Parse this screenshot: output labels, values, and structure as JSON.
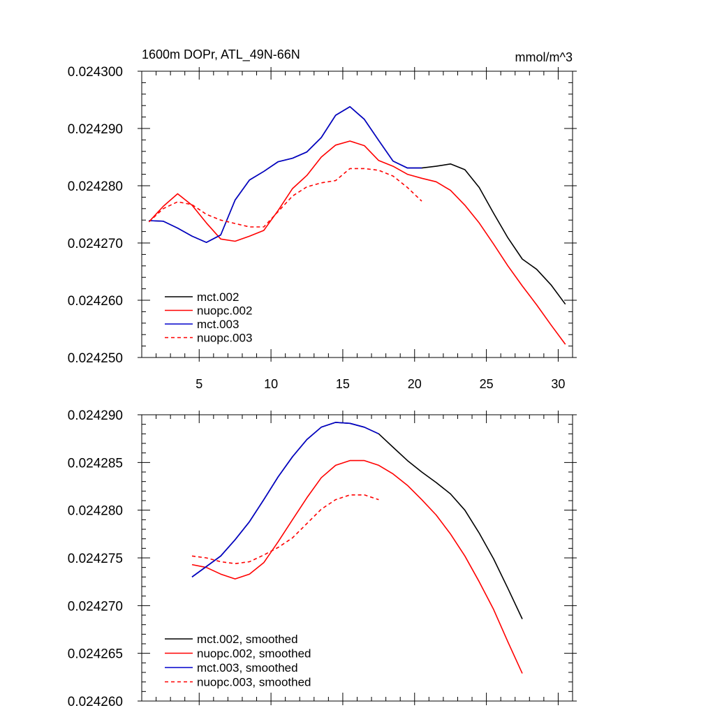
{
  "chart_data": [
    {
      "type": "line",
      "title": "1600m DOPr, ATL_49N-66N",
      "units": "mmol/m^3",
      "xlim": [
        1.0,
        31.0
      ],
      "ylim": [
        0.02425,
        0.0243
      ],
      "xticks": [
        5,
        10,
        15,
        20,
        25,
        30
      ],
      "xtick_labels": [
        "5",
        "10",
        "15",
        "20",
        "25",
        "30"
      ],
      "yticks": [
        0.02425,
        0.02426,
        0.02427,
        0.02428,
        0.02429,
        0.0243
      ],
      "ytick_labels": [
        "0.024250",
        "0.024260",
        "0.024270",
        "0.024280",
        "0.024290",
        "0.024300"
      ],
      "legend_position": "bottom-left",
      "series": [
        {
          "name": "mct.002",
          "color": "#000000",
          "dash": "solid",
          "x": [
            1.5,
            2.5,
            3.5,
            4.5,
            5.5,
            6.5,
            7.5,
            8.5,
            9.5,
            10.5,
            11.5,
            12.5,
            13.5,
            14.5,
            15.5,
            16.5,
            17.5,
            18.5,
            19.5,
            20.5,
            21.5,
            22.5,
            23.5,
            24.5,
            25.5,
            26.5,
            27.5,
            28.5,
            29.5,
            30.5
          ],
          "y": [
            0.0242739,
            0.0242738,
            0.0242726,
            0.0242712,
            0.0242701,
            0.0242714,
            0.0242775,
            0.024281,
            0.0242825,
            0.0242842,
            0.0242848,
            0.0242859,
            0.0242884,
            0.0242923,
            0.0242938,
            0.0242916,
            0.0242879,
            0.0242843,
            0.0242831,
            0.0242831,
            0.0242834,
            0.0242838,
            0.0242828,
            0.0242797,
            0.0242752,
            0.0242709,
            0.0242672,
            0.0242654,
            0.0242627,
            0.0242593
          ]
        },
        {
          "name": "nuopc.002",
          "color": "#ff0000",
          "dash": "solid",
          "x": [
            1.5,
            2.5,
            3.5,
            4.5,
            5.5,
            6.5,
            7.5,
            8.5,
            9.5,
            10.5,
            11.5,
            12.5,
            13.5,
            14.5,
            15.5,
            16.5,
            17.5,
            18.5,
            19.5,
            20.5,
            21.5,
            22.5,
            23.5,
            24.5,
            25.5,
            26.5,
            27.5,
            28.5,
            29.5,
            30.5
          ],
          "y": [
            0.0242737,
            0.0242764,
            0.0242786,
            0.0242766,
            0.0242735,
            0.0242707,
            0.0242703,
            0.0242712,
            0.0242722,
            0.0242757,
            0.0242795,
            0.0242818,
            0.024285,
            0.0242871,
            0.0242878,
            0.024287,
            0.0242844,
            0.0242834,
            0.024282,
            0.0242813,
            0.0242807,
            0.0242792,
            0.0242766,
            0.0242735,
            0.0242698,
            0.024266,
            0.0242625,
            0.0242592,
            0.0242557,
            0.0242523
          ]
        },
        {
          "name": "mct.003",
          "color": "#0000cc",
          "dash": "solid",
          "x": [
            1.5,
            2.5,
            3.5,
            4.5,
            5.5,
            6.5,
            7.5,
            8.5,
            9.5,
            10.5,
            11.5,
            12.5,
            13.5,
            14.5,
            15.5,
            16.5,
            17.5,
            18.5,
            19.5,
            20.5
          ],
          "y": [
            0.0242739,
            0.0242738,
            0.0242726,
            0.0242712,
            0.0242701,
            0.0242714,
            0.0242775,
            0.024281,
            0.0242825,
            0.0242842,
            0.0242848,
            0.0242859,
            0.0242884,
            0.0242923,
            0.0242938,
            0.0242916,
            0.0242879,
            0.0242843,
            0.0242831,
            0.0242831
          ]
        },
        {
          "name": "nuopc.003",
          "color": "#ff0000",
          "dash": "dashed",
          "x": [
            1.5,
            2.5,
            3.5,
            4.5,
            5.5,
            6.5,
            7.5,
            8.5,
            9.5,
            10.5,
            11.5,
            12.5,
            13.5,
            14.5,
            15.5,
            16.5,
            17.5,
            18.5,
            19.5,
            20.5
          ],
          "y": [
            0.0242737,
            0.024276,
            0.0242772,
            0.0242767,
            0.024275,
            0.024274,
            0.0242734,
            0.0242728,
            0.0242728,
            0.0242755,
            0.0242782,
            0.0242798,
            0.0242805,
            0.0242809,
            0.024283,
            0.024283,
            0.0242827,
            0.0242817,
            0.0242797,
            0.0242773
          ]
        }
      ]
    },
    {
      "type": "line",
      "xlim": [
        1.0,
        31.0
      ],
      "ylim": [
        0.02426,
        0.02429
      ],
      "xticks": [
        5,
        10,
        15,
        20,
        25,
        30
      ],
      "yticks": [
        0.02426,
        0.024265,
        0.02427,
        0.024275,
        0.02428,
        0.024285,
        0.02429
      ],
      "ytick_labels": [
        "0.024260",
        "0.024265",
        "0.024270",
        "0.024275",
        "0.024280",
        "0.024285",
        "0.024290"
      ],
      "legend_position": "bottom-left",
      "series": [
        {
          "name": "mct.002, smoothed",
          "color": "#000000",
          "dash": "solid",
          "x": [
            4.5,
            5.5,
            6.5,
            7.5,
            8.5,
            9.5,
            10.5,
            11.5,
            12.5,
            13.5,
            14.5,
            15.5,
            16.5,
            17.5,
            18.5,
            19.5,
            20.5,
            21.5,
            22.5,
            23.5,
            24.5,
            25.5,
            26.5,
            27.5
          ],
          "y": [
            0.024273,
            0.0242741,
            0.0242752,
            0.0242769,
            0.0242788,
            0.0242811,
            0.0242835,
            0.0242856,
            0.0242874,
            0.0242887,
            0.0242892,
            0.0242891,
            0.0242887,
            0.024288,
            0.0242866,
            0.0242852,
            0.024284,
            0.0242829,
            0.0242817,
            0.02428,
            0.0242776,
            0.0242749,
            0.0242718,
            0.0242686
          ]
        },
        {
          "name": "nuopc.002, smoothed",
          "color": "#ff0000",
          "dash": "solid",
          "x": [
            4.5,
            5.5,
            6.5,
            7.5,
            8.5,
            9.5,
            10.5,
            11.5,
            12.5,
            13.5,
            14.5,
            15.5,
            16.5,
            17.5,
            18.5,
            19.5,
            20.5,
            21.5,
            22.5,
            23.5,
            24.5,
            25.5,
            26.5,
            27.5
          ],
          "y": [
            0.0242743,
            0.024274,
            0.0242733,
            0.0242728,
            0.0242733,
            0.0242745,
            0.0242767,
            0.024279,
            0.0242813,
            0.0242834,
            0.0242847,
            0.0242852,
            0.0242852,
            0.0242847,
            0.0242838,
            0.0242826,
            0.0242811,
            0.0242795,
            0.0242775,
            0.0242752,
            0.0242725,
            0.0242696,
            0.0242662,
            0.0242629
          ]
        },
        {
          "name": "mct.003, smoothed",
          "color": "#0000cc",
          "dash": "solid",
          "x": [
            4.5,
            5.5,
            6.5,
            7.5,
            8.5,
            9.5,
            10.5,
            11.5,
            12.5,
            13.5,
            14.5,
            15.5,
            16.5,
            17.5
          ],
          "y": [
            0.024273,
            0.0242741,
            0.0242752,
            0.0242769,
            0.0242788,
            0.0242811,
            0.0242835,
            0.0242856,
            0.0242874,
            0.0242887,
            0.0242892,
            0.0242891,
            0.0242887,
            0.024288
          ]
        },
        {
          "name": "nuopc.003, smoothed",
          "color": "#ff0000",
          "dash": "dashed",
          "x": [
            4.5,
            5.5,
            6.5,
            7.5,
            8.5,
            9.5,
            10.5,
            11.5,
            12.5,
            13.5,
            14.5,
            15.5,
            16.5,
            17.5
          ],
          "y": [
            0.0242752,
            0.024275,
            0.0242746,
            0.0242744,
            0.0242746,
            0.0242753,
            0.0242761,
            0.0242771,
            0.0242786,
            0.0242801,
            0.0242811,
            0.0242816,
            0.0242816,
            0.0242811
          ]
        }
      ]
    }
  ]
}
